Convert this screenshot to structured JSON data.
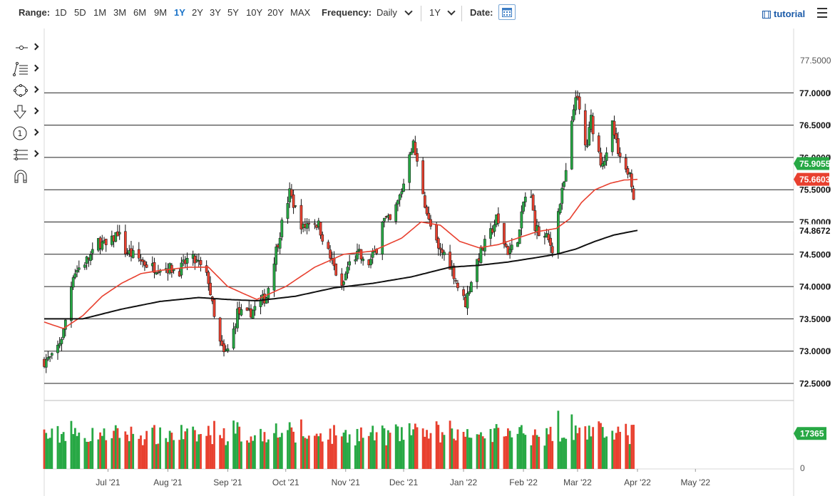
{
  "toolbar": {
    "range_label": "Range:",
    "ranges": [
      "1D",
      "5D",
      "1M",
      "3M",
      "6M",
      "9M",
      "1Y",
      "2Y",
      "3Y",
      "5Y",
      "10Y",
      "20Y",
      "MAX"
    ],
    "active_range": "1Y",
    "frequency_label": "Frequency:",
    "frequency_value": "Daily",
    "period_value": "1Y",
    "date_label": "Date:",
    "tutorial_label": "tutorial"
  },
  "drawing_tools": [
    "crosshair-tool-icon",
    "trendline-tool-icon",
    "shape-tool-icon",
    "arrow-tool-icon",
    "annotation-tool-icon",
    "fibonacci-tool-icon",
    "magnet-tool-icon"
  ],
  "colors": {
    "up": "#27a844",
    "down": "#e8402f",
    "ma_red": "#e8402f",
    "ma_black": "#111111",
    "badge_green": "#27a844",
    "badge_red": "#e8402f"
  },
  "chart_data": {
    "type": "candlestick",
    "y_axis": {
      "ticks": [
        "77.5000",
        "77.0000",
        "76.5000",
        "76.0000",
        "75.5000",
        "75.0000",
        "74.5000",
        "74.0000",
        "73.5000",
        "73.0000",
        "72.5000"
      ],
      "range": [
        72.4,
        77.6
      ]
    },
    "horizontal_levels": [
      77.0,
      76.5,
      76.0,
      75.5,
      75.0,
      74.5,
      74.0,
      73.5,
      73.0,
      72.5
    ],
    "badges": [
      {
        "label": "77.0000",
        "value": 77.0,
        "style": "level"
      },
      {
        "label": "76.5000",
        "value": 76.5,
        "style": "level"
      },
      {
        "label": "76.0000",
        "value": 76.0,
        "style": "level"
      },
      {
        "label": "75.5000",
        "value": 75.5,
        "style": "level"
      },
      {
        "label": "75.0000",
        "value": 75.0,
        "style": "level"
      },
      {
        "label": "74.5000",
        "value": 74.5,
        "style": "level"
      },
      {
        "label": "74.0000",
        "value": 74.0,
        "style": "level"
      },
      {
        "label": "73.5000",
        "value": 73.5,
        "style": "level"
      },
      {
        "label": "73.0000",
        "value": 73.0,
        "style": "level"
      },
      {
        "label": "72.5000",
        "value": 72.5,
        "style": "level"
      },
      {
        "label": "74.8672",
        "value": 74.8672,
        "style": "level"
      },
      {
        "label": "75.6603",
        "value": 75.6603,
        "style": "red"
      },
      {
        "label": "75.9055",
        "value": 75.9055,
        "style": "green"
      }
    ],
    "x_axis": {
      "labels": [
        {
          "label": "Jul '21",
          "day": 33
        },
        {
          "label": "Aug '21",
          "day": 64
        },
        {
          "label": "Sep '21",
          "day": 95
        },
        {
          "label": "Oct '21",
          "day": 125
        },
        {
          "label": "Nov '21",
          "day": 156
        },
        {
          "label": "Dec '21",
          "day": 186
        },
        {
          "label": "Jan '22",
          "day": 217
        },
        {
          "label": "Feb '22",
          "day": 248
        },
        {
          "label": "Mar '22",
          "day": 276
        },
        {
          "label": "Apr '22",
          "day": 307
        },
        {
          "label": "May '22",
          "day": 337
        }
      ],
      "range": [
        0,
        350
      ]
    },
    "volume": {
      "last_label": "17365",
      "zero_label": "0",
      "range": [
        0,
        30000
      ]
    },
    "anchors": [
      [
        0,
        72.85
      ],
      [
        5,
        72.9
      ],
      [
        10,
        73.3
      ],
      [
        15,
        74.2
      ],
      [
        20,
        74.35
      ],
      [
        25,
        74.5
      ],
      [
        28,
        74.7
      ],
      [
        33,
        74.6
      ],
      [
        38,
        74.85
      ],
      [
        42,
        74.55
      ],
      [
        48,
        74.45
      ],
      [
        55,
        74.3
      ],
      [
        62,
        74.3
      ],
      [
        70,
        74.25
      ],
      [
        75,
        74.45
      ],
      [
        80,
        74.35
      ],
      [
        85,
        74.1
      ],
      [
        88,
        73.5
      ],
      [
        90,
        73.2
      ],
      [
        93,
        72.95
      ],
      [
        96,
        73.05
      ],
      [
        100,
        73.6
      ],
      [
        105,
        73.55
      ],
      [
        110,
        73.7
      ],
      [
        115,
        73.85
      ],
      [
        118,
        74.3
      ],
      [
        121,
        74.7
      ],
      [
        124,
        75.1
      ],
      [
        127,
        75.45
      ],
      [
        130,
        75.2
      ],
      [
        134,
        74.9
      ],
      [
        138,
        75.05
      ],
      [
        142,
        74.95
      ],
      [
        146,
        74.6
      ],
      [
        150,
        74.3
      ],
      [
        154,
        73.95
      ],
      [
        157,
        74.3
      ],
      [
        160,
        74.45
      ],
      [
        163,
        74.5
      ],
      [
        166,
        74.3
      ],
      [
        169,
        74.4
      ],
      [
        172,
        74.6
      ],
      [
        175,
        75.05
      ],
      [
        179,
        75.0
      ],
      [
        183,
        75.3
      ],
      [
        186,
        75.6
      ],
      [
        189,
        76.1
      ],
      [
        191,
        76.2
      ],
      [
        193,
        75.9
      ],
      [
        195,
        75.65
      ],
      [
        197,
        75.3
      ],
      [
        199,
        75.0
      ],
      [
        201,
        74.85
      ],
      [
        204,
        74.55
      ],
      [
        208,
        74.5
      ],
      [
        212,
        74.2
      ],
      [
        215,
        73.9
      ],
      [
        218,
        73.75
      ],
      [
        221,
        74.1
      ],
      [
        224,
        74.4
      ],
      [
        227,
        74.6
      ],
      [
        230,
        74.75
      ],
      [
        234,
        75.05
      ],
      [
        237,
        74.75
      ],
      [
        240,
        74.55
      ],
      [
        243,
        74.6
      ],
      [
        246,
        74.85
      ],
      [
        248,
        75.3
      ],
      [
        251,
        75.55
      ],
      [
        254,
        74.95
      ],
      [
        257,
        74.75
      ],
      [
        260,
        74.75
      ],
      [
        263,
        74.6
      ],
      [
        266,
        75.15
      ],
      [
        269,
        75.6
      ],
      [
        271,
        75.9
      ],
      [
        273,
        76.5
      ],
      [
        275,
        77.0
      ],
      [
        277,
        76.7
      ],
      [
        279,
        76.15
      ],
      [
        281,
        76.2
      ],
      [
        283,
        76.6
      ],
      [
        285,
        76.3
      ],
      [
        288,
        75.95
      ],
      [
        291,
        76.0
      ],
      [
        294,
        76.5
      ],
      [
        297,
        76.05
      ],
      [
        300,
        75.7
      ],
      [
        303,
        75.85
      ],
      [
        305,
        75.4
      ],
      [
        307,
        75.91
      ]
    ],
    "ma50_anchors": [
      [
        0,
        73.45
      ],
      [
        10,
        73.35
      ],
      [
        20,
        73.55
      ],
      [
        30,
        73.85
      ],
      [
        40,
        74.05
      ],
      [
        50,
        74.2
      ],
      [
        60,
        74.25
      ],
      [
        75,
        74.3
      ],
      [
        85,
        74.3
      ],
      [
        95,
        74.0
      ],
      [
        110,
        73.8
      ],
      [
        125,
        74.0
      ],
      [
        140,
        74.3
      ],
      [
        155,
        74.5
      ],
      [
        170,
        74.55
      ],
      [
        185,
        74.75
      ],
      [
        195,
        75.0
      ],
      [
        205,
        74.95
      ],
      [
        215,
        74.7
      ],
      [
        225,
        74.6
      ],
      [
        235,
        74.65
      ],
      [
        245,
        74.75
      ],
      [
        255,
        74.85
      ],
      [
        265,
        74.9
      ],
      [
        272,
        75.05
      ],
      [
        278,
        75.3
      ],
      [
        285,
        75.5
      ],
      [
        293,
        75.6
      ],
      [
        300,
        75.65
      ],
      [
        307,
        75.66
      ]
    ],
    "ma200_anchors": [
      [
        0,
        73.5
      ],
      [
        20,
        73.5
      ],
      [
        40,
        73.65
      ],
      [
        60,
        73.77
      ],
      [
        80,
        73.83
      ],
      [
        95,
        73.8
      ],
      [
        110,
        73.78
      ],
      [
        130,
        73.85
      ],
      [
        150,
        73.98
      ],
      [
        170,
        74.05
      ],
      [
        190,
        74.15
      ],
      [
        210,
        74.3
      ],
      [
        225,
        74.33
      ],
      [
        240,
        74.38
      ],
      [
        255,
        74.45
      ],
      [
        265,
        74.5
      ],
      [
        275,
        74.58
      ],
      [
        285,
        74.7
      ],
      [
        295,
        74.8
      ],
      [
        307,
        74.87
      ]
    ]
  }
}
